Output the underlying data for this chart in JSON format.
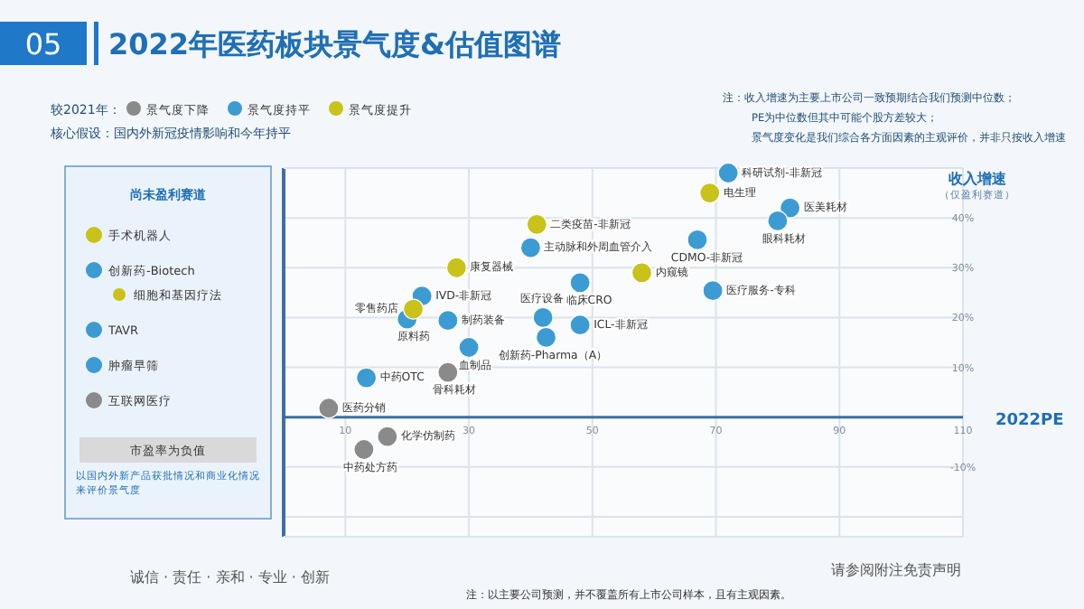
{
  "chart_data": [
    {
      "type": "scatter",
      "title": "2022年医药板块景气度&估值图谱",
      "subtitle": "核心假设：国内外新冠疫情影响和今年持平",
      "xlabel": "2022PE",
      "ylabel": "收入增速",
      "legend_title": "较2021年：",
      "legend": "top left",
      "grid": true,
      "marker": "circle",
      "xlim": [
        0,
        110
      ],
      "ylim": [
        -24,
        50
      ],
      "xticks": [
        10,
        30,
        50,
        70,
        90,
        110
      ],
      "yticks": [
        {
          "value": -20,
          "label": null
        },
        {
          "value": -10,
          "label": "-10%"
        },
        {
          "value": 10,
          "label": "10%"
        },
        {
          "value": 20,
          "label": "20%"
        },
        {
          "value": 30,
          "label": "30%"
        },
        {
          "value": 40,
          "label": "40%"
        }
      ],
      "series": [
        {
          "name": "景气度下降",
          "color": "#8a8a8a",
          "x": [
            26.6,
            7.3,
            16.8,
            13
          ],
          "values": [
            9,
            1.8,
            -3.9,
            -6.5
          ]
        },
        {
          "name": "景气度持平",
          "color": "#3d9bd3",
          "x": [
            72,
            82,
            80,
            67,
            69.5,
            40,
            48,
            22.4,
            20,
            26.6,
            42,
            48,
            42.5,
            30,
            13.4
          ],
          "values": [
            49,
            42,
            39.4,
            35.6,
            25.4,
            34,
            27,
            24.3,
            19.7,
            19.4,
            20,
            18.5,
            16,
            14,
            7.9
          ]
        },
        {
          "name": "景气度提升",
          "color": "#c8c21a",
          "x": [
            69,
            41,
            28,
            58,
            21
          ],
          "values": [
            45,
            38.7,
            30,
            29,
            21.7
          ]
        }
      ],
      "annotations": [
        {
          "text": "科研试剂-非新冠",
          "x": 72,
          "y": 49
        },
        {
          "text": "电生理",
          "x": 69,
          "y": 45
        },
        {
          "text": "医美耗材",
          "x": 82,
          "y": 42
        },
        {
          "text": "眼科耗材",
          "x": 80,
          "y": 39.4
        },
        {
          "text": "CDMO-非新冠",
          "x": 67,
          "y": 35.6
        },
        {
          "text": "医疗服务-专科",
          "x": 69.5,
          "y": 25.4
        },
        {
          "text": "二类疫苗-非新冠",
          "x": 41,
          "y": 38.7
        },
        {
          "text": "主动脉和外周血管介入",
          "x": 40,
          "y": 34
        },
        {
          "text": "康复器械",
          "x": 28,
          "y": 30
        },
        {
          "text": "内窥镜",
          "x": 58,
          "y": 29
        },
        {
          "text": "临床CRO",
          "x": 48,
          "y": 27
        },
        {
          "text": "IVD-非新冠",
          "x": 22.4,
          "y": 24.3
        },
        {
          "text": "零售药店",
          "x": 21,
          "y": 21.7
        },
        {
          "text": "原料药",
          "x": 20,
          "y": 19.7
        },
        {
          "text": "制药装备",
          "x": 26.6,
          "y": 19.4
        },
        {
          "text": "医疗设备",
          "x": 42,
          "y": 20
        },
        {
          "text": "ICL-非新冠",
          "x": 48,
          "y": 18.5
        },
        {
          "text": "创新药-Pharma（A）",
          "x": 42.5,
          "y": 16
        },
        {
          "text": "血制品",
          "x": 30,
          "y": 14
        },
        {
          "text": "中药OTC",
          "x": 13.4,
          "y": 7.9
        },
        {
          "text": "骨科耗材",
          "x": 26.6,
          "y": 9
        },
        {
          "text": "医药分销",
          "x": 7.3,
          "y": 1.8
        },
        {
          "text": "化学仿制药",
          "x": 16.8,
          "y": -3.9
        },
        {
          "text": "中药处方药",
          "x": 13,
          "y": -6.5
        },
        "05",
        "（仅盈利赛道）",
        "注：收入增速为主要上市公司一致预期结合我们预测中位数；",
        "PE为中位数但其中可能个股方差较大；",
        "景气度变化是我们综合各方面因素的主观评价，并非只按收入增速",
        "诚信 · 责任 · 亲和 · 专业 · 创新",
        "注：以主要公司预测，并不覆盖所有上市公司样本，且有主观因素。",
        "请参阅附注免责声明"
      ]
    },
    {
      "type": "other",
      "title": "尚未盈利赛道",
      "categories": [
        "手术机器人",
        "创新药-Biotech",
        "细胞和基因疗法",
        "TAVR",
        "肿瘤早筛",
        "互联网医疗"
      ],
      "colors": [
        "#c8c21a",
        "#3d9bd3",
        "#c8c21a",
        "#3d9bd3",
        "#3d9bd3",
        "#8a8a8a"
      ],
      "annotations": [
        "市盈率为负值",
        "以国内外新产品获批情况和商业化情况来评价景气度"
      ]
    }
  ]
}
